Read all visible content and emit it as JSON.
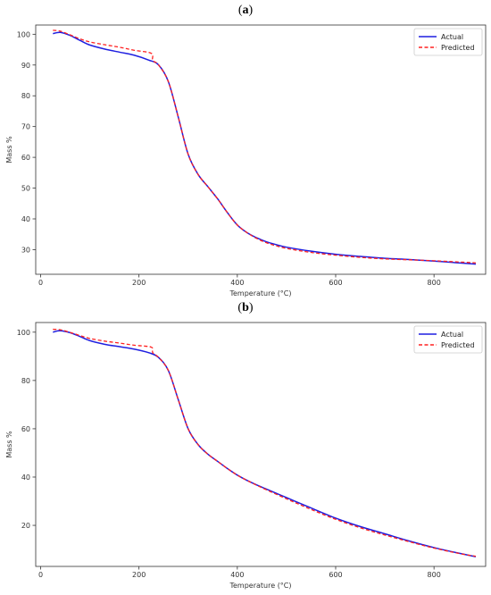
{
  "panels": [
    {
      "label_open": "(",
      "label_letter": "a",
      "label_close": ")"
    },
    {
      "label_open": "(",
      "label_letter": "b",
      "label_close": ")"
    }
  ],
  "colors": {
    "actual": "#1f1fe0",
    "predicted": "#ff2020"
  },
  "chart_data": [
    {
      "type": "line",
      "title": "",
      "xlabel": "Temperature (°C)",
      "ylabel": "Mass %",
      "xlim": [
        -10,
        905
      ],
      "ylim": [
        22,
        103
      ],
      "xticks": [
        0,
        200,
        400,
        600,
        800
      ],
      "yticks": [
        30,
        40,
        50,
        60,
        70,
        80,
        90,
        100
      ],
      "grid": false,
      "legend_position": "top-right",
      "series": [
        {
          "name": "Actual",
          "style": "solid",
          "x": [
            25,
            40,
            60,
            80,
            100,
            130,
            160,
            190,
            220,
            240,
            260,
            280,
            300,
            320,
            340,
            360,
            380,
            400,
            420,
            440,
            460,
            480,
            500,
            550,
            600,
            650,
            700,
            750,
            800,
            850,
            885
          ],
          "y": [
            100.2,
            100.6,
            99.6,
            98.0,
            96.5,
            95.2,
            94.2,
            93.2,
            91.6,
            90.0,
            84.5,
            73.0,
            61.0,
            54.5,
            50.5,
            46.5,
            42.0,
            38.0,
            35.5,
            33.8,
            32.5,
            31.6,
            30.8,
            29.5,
            28.5,
            27.8,
            27.2,
            26.8,
            26.3,
            25.7,
            25.3
          ]
        },
        {
          "name": "Predicted",
          "style": "dashed",
          "x": [
            25,
            40,
            60,
            80,
            100,
            130,
            160,
            190,
            225,
            228,
            240,
            260,
            280,
            300,
            320,
            340,
            360,
            380,
            400,
            420,
            440,
            460,
            480,
            500,
            550,
            600,
            650,
            700,
            750,
            800,
            850,
            885
          ],
          "y": [
            101.3,
            101.0,
            99.8,
            98.5,
            97.5,
            96.6,
            95.8,
            94.8,
            93.8,
            91.5,
            90.0,
            84.5,
            73.0,
            61.0,
            54.5,
            50.5,
            46.5,
            42.0,
            38.0,
            35.5,
            33.6,
            32.2,
            31.2,
            30.4,
            29.1,
            28.2,
            27.5,
            27.0,
            26.7,
            26.4,
            26.0,
            25.7
          ]
        }
      ]
    },
    {
      "type": "line",
      "title": "",
      "xlabel": "Temperature (°C)",
      "ylabel": "Mass %",
      "xlim": [
        -10,
        905
      ],
      "ylim": [
        3,
        104
      ],
      "xticks": [
        0,
        200,
        400,
        600,
        800
      ],
      "yticks": [
        20,
        40,
        60,
        80,
        100
      ],
      "grid": false,
      "legend_position": "top-right",
      "series": [
        {
          "name": "Actual",
          "style": "solid",
          "x": [
            25,
            40,
            60,
            80,
            100,
            130,
            160,
            190,
            220,
            240,
            260,
            280,
            300,
            320,
            340,
            360,
            380,
            400,
            420,
            450,
            500,
            550,
            600,
            650,
            700,
            750,
            800,
            850,
            885
          ],
          "y": [
            100.0,
            100.6,
            99.8,
            98.2,
            96.5,
            95.0,
            94.0,
            93.0,
            91.5,
            89.5,
            84.0,
            72.0,
            60.0,
            53.5,
            49.5,
            46.5,
            43.5,
            40.8,
            38.6,
            35.8,
            31.5,
            27.2,
            23.0,
            19.5,
            16.5,
            13.5,
            10.8,
            8.5,
            7.0
          ]
        },
        {
          "name": "Predicted",
          "style": "dashed",
          "x": [
            25,
            40,
            60,
            80,
            100,
            130,
            160,
            190,
            225,
            228,
            240,
            260,
            280,
            300,
            320,
            340,
            360,
            380,
            400,
            420,
            450,
            500,
            550,
            600,
            650,
            700,
            750,
            800,
            850,
            885
          ],
          "y": [
            101.2,
            101.0,
            99.9,
            98.6,
            97.4,
            96.3,
            95.5,
            94.6,
            93.8,
            91.5,
            89.5,
            84.0,
            72.0,
            60.0,
            53.5,
            49.5,
            46.5,
            43.5,
            40.8,
            38.6,
            35.6,
            31.0,
            26.6,
            22.5,
            19.0,
            16.0,
            13.2,
            10.6,
            8.4,
            7.2
          ]
        }
      ]
    }
  ]
}
